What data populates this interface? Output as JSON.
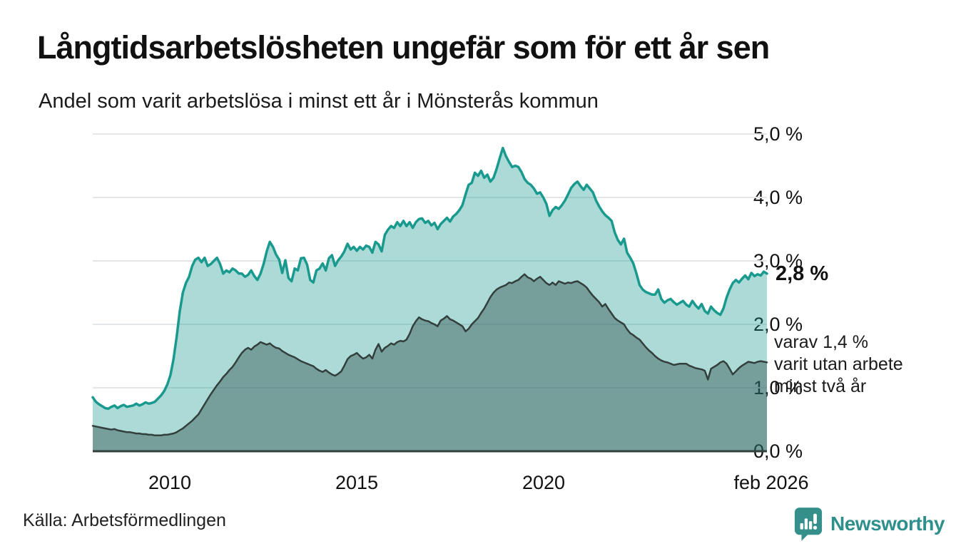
{
  "header": {
    "title": "Långtidsarbetslösheten ungefär som för ett år sen",
    "subtitle": "Andel som varit arbetslösa i minst ett år i Mönsterås kommun"
  },
  "annotations": {
    "end_value_label": "2,8 %",
    "secondary_line1": "varav 1,4 %",
    "secondary_line2": "varit utan arbete",
    "secondary_line3": "minst två år"
  },
  "footer": {
    "source": "Källa: Arbetsförmedlingen",
    "brand_name": "Newsworthy",
    "brand_color": "#2f8f8c"
  },
  "chart_data": {
    "type": "area",
    "title": "Långtidsarbetslösheten ungefär som för ett år sen",
    "subtitle": "Andel som varit arbetslösa i minst ett år i Mönsterås kommun",
    "unit": "percent",
    "frequency": "monthly",
    "x_start": "2008-01",
    "x_end": "2026-02",
    "ylim": [
      0,
      5
    ],
    "grid": true,
    "grid_color": "#e3e6e9",
    "axis_color": "#333f3d",
    "y_ticks": [
      {
        "label": "5,0 %",
        "value": 5.0
      },
      {
        "label": "4,0 %",
        "value": 4.0
      },
      {
        "label": "3,0 %",
        "value": 3.0
      },
      {
        "label": "2,0 %",
        "value": 2.0
      },
      {
        "label": "1,0 %",
        "value": 1.0
      },
      {
        "label": "0,0 %",
        "value": 0.0
      }
    ],
    "x_ticks": [
      {
        "label": "2010",
        "month_index": 24
      },
      {
        "label": "2015",
        "month_index": 84
      },
      {
        "label": "2020",
        "month_index": 144
      },
      {
        "label": "feb 2026",
        "month_index": 217
      }
    ],
    "series": [
      {
        "name": "Andel som varit arbetslösa i minst ett år",
        "end_value": 2.8,
        "color": "#1a9a8f",
        "fill": "rgba(26,154,143,0.36)",
        "values": [
          0.85,
          0.78,
          0.74,
          0.71,
          0.68,
          0.67,
          0.7,
          0.72,
          0.68,
          0.71,
          0.73,
          0.7,
          0.71,
          0.72,
          0.75,
          0.72,
          0.74,
          0.77,
          0.75,
          0.76,
          0.78,
          0.83,
          0.88,
          0.95,
          1.05,
          1.2,
          1.45,
          1.8,
          2.2,
          2.5,
          2.65,
          2.75,
          2.92,
          3.02,
          3.05,
          2.98,
          3.05,
          2.92,
          2.95,
          3.0,
          3.05,
          2.95,
          2.8,
          2.85,
          2.82,
          2.88,
          2.85,
          2.8,
          2.8,
          2.75,
          2.78,
          2.85,
          2.76,
          2.7,
          2.8,
          2.95,
          3.15,
          3.3,
          3.22,
          3.1,
          3.02,
          2.81,
          3.01,
          2.73,
          2.68,
          2.88,
          2.85,
          3.04,
          3.05,
          2.94,
          2.7,
          2.66,
          2.85,
          2.88,
          2.96,
          2.85,
          3.04,
          3.09,
          2.92,
          3.01,
          3.07,
          3.15,
          3.27,
          3.18,
          3.22,
          3.16,
          3.22,
          3.18,
          3.24,
          3.22,
          3.13,
          3.3,
          3.26,
          3.15,
          3.41,
          3.49,
          3.55,
          3.52,
          3.61,
          3.55,
          3.63,
          3.55,
          3.61,
          3.52,
          3.61,
          3.66,
          3.67,
          3.6,
          3.63,
          3.56,
          3.6,
          3.5,
          3.58,
          3.63,
          3.68,
          3.62,
          3.7,
          3.74,
          3.8,
          3.88,
          4.05,
          4.2,
          4.23,
          4.39,
          4.34,
          4.42,
          4.31,
          4.36,
          4.25,
          4.31,
          4.45,
          4.62,
          4.78,
          4.65,
          4.56,
          4.48,
          4.5,
          4.48,
          4.4,
          4.29,
          4.23,
          4.2,
          4.14,
          4.06,
          4.08,
          4.0,
          3.9,
          3.71,
          3.8,
          3.85,
          3.82,
          3.88,
          3.95,
          4.05,
          4.15,
          4.21,
          4.25,
          4.18,
          4.12,
          4.2,
          4.14,
          4.08,
          3.95,
          3.86,
          3.78,
          3.72,
          3.68,
          3.63,
          3.45,
          3.33,
          3.26,
          3.35,
          3.13,
          3.05,
          2.96,
          2.8,
          2.62,
          2.55,
          2.51,
          2.49,
          2.47,
          2.47,
          2.55,
          2.4,
          2.34,
          2.38,
          2.4,
          2.35,
          2.31,
          2.34,
          2.37,
          2.31,
          2.28,
          2.37,
          2.3,
          2.25,
          2.32,
          2.21,
          2.17,
          2.28,
          2.22,
          2.18,
          2.15,
          2.25,
          2.42,
          2.55,
          2.65,
          2.7,
          2.66,
          2.72,
          2.77,
          2.71,
          2.81,
          2.76,
          2.79,
          2.77,
          2.83,
          2.8
        ]
      },
      {
        "name": "varav utan arbete minst två år",
        "end_value": 1.4,
        "color": "#333f3d",
        "fill": "rgba(43,77,73,0.42)",
        "values": [
          0.4,
          0.39,
          0.38,
          0.37,
          0.36,
          0.35,
          0.34,
          0.35,
          0.33,
          0.32,
          0.31,
          0.3,
          0.3,
          0.29,
          0.28,
          0.28,
          0.27,
          0.27,
          0.26,
          0.26,
          0.25,
          0.25,
          0.25,
          0.26,
          0.26,
          0.27,
          0.28,
          0.3,
          0.33,
          0.36,
          0.4,
          0.44,
          0.48,
          0.53,
          0.58,
          0.66,
          0.74,
          0.82,
          0.9,
          0.97,
          1.04,
          1.1,
          1.17,
          1.22,
          1.28,
          1.33,
          1.4,
          1.48,
          1.55,
          1.6,
          1.63,
          1.6,
          1.65,
          1.68,
          1.72,
          1.7,
          1.68,
          1.7,
          1.66,
          1.63,
          1.62,
          1.58,
          1.55,
          1.52,
          1.5,
          1.48,
          1.45,
          1.42,
          1.4,
          1.38,
          1.36,
          1.34,
          1.3,
          1.27,
          1.25,
          1.28,
          1.24,
          1.21,
          1.19,
          1.22,
          1.26,
          1.35,
          1.45,
          1.5,
          1.52,
          1.55,
          1.5,
          1.46,
          1.48,
          1.52,
          1.46,
          1.6,
          1.69,
          1.57,
          1.63,
          1.66,
          1.7,
          1.68,
          1.72,
          1.74,
          1.73,
          1.76,
          1.85,
          1.97,
          2.05,
          2.11,
          2.08,
          2.06,
          2.05,
          2.02,
          2.0,
          1.97,
          2.06,
          2.09,
          2.13,
          2.08,
          2.06,
          2.03,
          2.0,
          1.97,
          1.89,
          1.93,
          2.0,
          2.05,
          2.1,
          2.18,
          2.25,
          2.34,
          2.43,
          2.5,
          2.55,
          2.58,
          2.6,
          2.62,
          2.66,
          2.65,
          2.68,
          2.7,
          2.75,
          2.79,
          2.74,
          2.72,
          2.68,
          2.72,
          2.75,
          2.7,
          2.65,
          2.62,
          2.66,
          2.62,
          2.68,
          2.66,
          2.64,
          2.66,
          2.65,
          2.67,
          2.68,
          2.65,
          2.62,
          2.58,
          2.51,
          2.45,
          2.4,
          2.35,
          2.28,
          2.32,
          2.24,
          2.17,
          2.1,
          2.06,
          2.03,
          2.0,
          1.92,
          1.86,
          1.83,
          1.79,
          1.76,
          1.7,
          1.64,
          1.59,
          1.55,
          1.5,
          1.46,
          1.43,
          1.41,
          1.4,
          1.38,
          1.36,
          1.37,
          1.38,
          1.38,
          1.38,
          1.35,
          1.33,
          1.31,
          1.3,
          1.29,
          1.27,
          1.13,
          1.3,
          1.33,
          1.36,
          1.4,
          1.42,
          1.38,
          1.3,
          1.21,
          1.26,
          1.31,
          1.35,
          1.38,
          1.41,
          1.4,
          1.39,
          1.41,
          1.42,
          1.41,
          1.4
        ]
      }
    ]
  }
}
